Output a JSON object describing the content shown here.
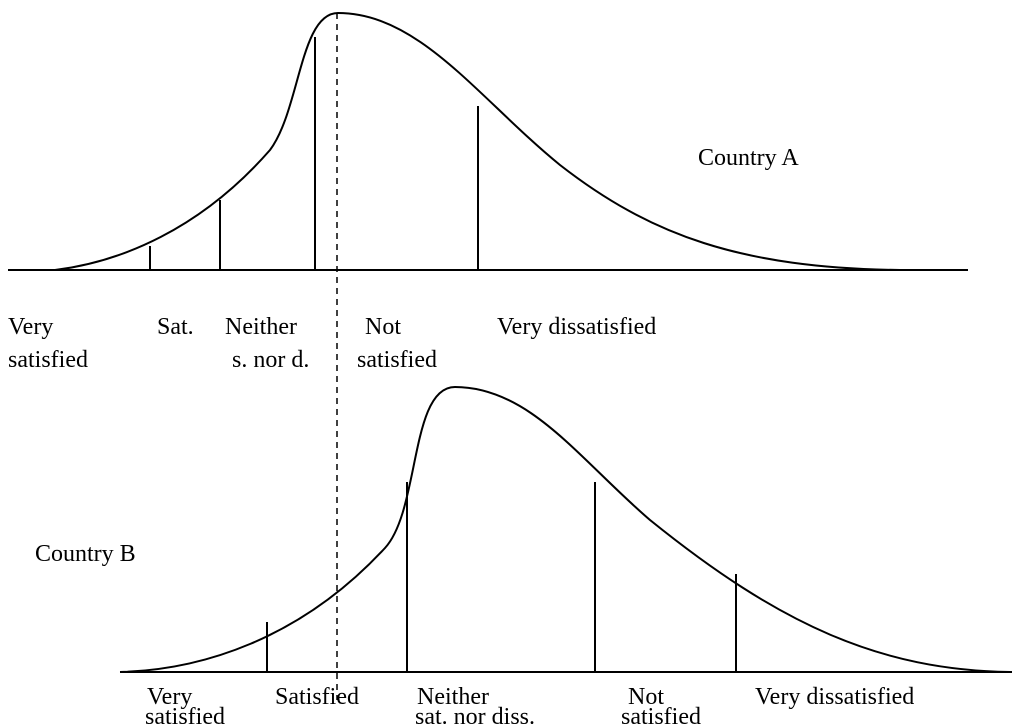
{
  "country_a": {
    "label": "Country A",
    "categories": [
      [
        "Very",
        "satisfied"
      ],
      [
        "Sat."
      ],
      [
        "Neither",
        "s. nor d."
      ],
      [
        "Not",
        "satisfied"
      ],
      [
        "Very dissatisfied"
      ]
    ]
  },
  "country_b": {
    "label": "Country B",
    "categories": [
      [
        "Very",
        "satisfied"
      ],
      [
        "Satisfied"
      ],
      [
        "Neither",
        "sat. nor diss."
      ],
      [
        "Not",
        "satisfied"
      ],
      [
        "Very dissatisfied"
      ]
    ]
  }
}
